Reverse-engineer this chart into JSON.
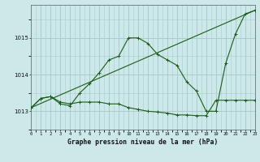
{
  "bg_color": "#cce8e8",
  "grid_color": "#aacccc",
  "line_color": "#1a5c1a",
  "title": "Graphe pression niveau de la mer (hPa)",
  "xlim": [
    0,
    23
  ],
  "ylim": [
    1012.5,
    1015.9
  ],
  "yticks": [
    1013,
    1014,
    1015
  ],
  "series1_x": [
    0,
    1,
    2,
    3,
    4,
    5,
    6,
    7,
    8,
    9,
    10,
    11,
    12,
    13,
    14,
    15,
    16,
    17,
    18,
    19,
    20,
    21,
    22,
    23
  ],
  "series1_y": [
    1013.1,
    1013.35,
    1013.4,
    1013.25,
    1013.2,
    1013.25,
    1013.25,
    1013.25,
    1013.2,
    1013.2,
    1013.1,
    1013.05,
    1013.0,
    1012.98,
    1012.95,
    1012.9,
    1012.9,
    1012.88,
    1012.88,
    1013.3,
    1013.3,
    1013.3,
    1013.3,
    1013.3
  ],
  "series2_x": [
    0,
    1,
    2,
    3,
    4,
    5,
    6,
    7,
    8,
    9,
    10,
    11,
    12,
    13,
    14,
    15,
    16,
    17,
    18,
    19,
    20,
    21,
    22,
    23
  ],
  "series2_y": [
    1013.1,
    1013.35,
    1013.4,
    1013.2,
    1013.15,
    1013.5,
    1013.75,
    1014.05,
    1014.4,
    1014.5,
    1015.0,
    1015.0,
    1014.85,
    1014.55,
    1014.4,
    1014.25,
    1013.8,
    1013.55,
    1013.0,
    1013.0,
    1014.3,
    1015.1,
    1015.65,
    1015.75
  ],
  "series3_x": [
    0,
    23
  ],
  "series3_y": [
    1013.1,
    1015.75
  ],
  "xtick_labels": [
    "0",
    "1",
    "2",
    "3",
    "4",
    "5",
    "6",
    "7",
    "8",
    "9",
    "10",
    "11",
    "12",
    "13",
    "14",
    "15",
    "16",
    "17",
    "18",
    "19",
    "20",
    "21",
    "22",
    "23"
  ]
}
